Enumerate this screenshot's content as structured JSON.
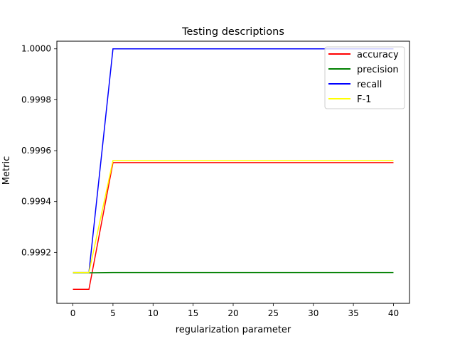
{
  "chart_data": {
    "type": "line",
    "title": "Testing descriptions",
    "xlabel": "regularization parameter",
    "ylabel": "Metric",
    "x": [
      0,
      2,
      5,
      10,
      15,
      20,
      25,
      30,
      35,
      40
    ],
    "xlim": [
      -2,
      42
    ],
    "ylim": [
      0.999,
      1.00003
    ],
    "xticks": [
      0,
      5,
      10,
      15,
      20,
      25,
      30,
      35,
      40
    ],
    "xtick_labels": [
      "0",
      "5",
      "10",
      "15",
      "20",
      "25",
      "30",
      "35",
      "40"
    ],
    "yticks": [
      0.9992,
      0.9994,
      0.9996,
      0.9998,
      1.0
    ],
    "ytick_labels": [
      "0.9992",
      "0.9994",
      "0.9996",
      "0.9998",
      "1.0000"
    ],
    "grid": false,
    "legend_position": "top-right",
    "series": [
      {
        "name": "accuracy",
        "color": "#ff0000",
        "values": [
          0.999055,
          0.999055,
          0.999553,
          0.999553,
          0.999553,
          0.999553,
          0.999553,
          0.999553,
          0.999553,
          0.999553
        ]
      },
      {
        "name": "precision",
        "color": "#008000",
        "values": [
          0.99912,
          0.99912,
          0.999121,
          0.999121,
          0.999121,
          0.999121,
          0.999121,
          0.999121,
          0.999121,
          0.999121
        ]
      },
      {
        "name": "recall",
        "color": "#0000ff",
        "values": [
          0.999121,
          0.999121,
          1.0,
          1.0,
          1.0,
          1.0,
          1.0,
          1.0,
          1.0,
          1.0
        ]
      },
      {
        "name": "F-1",
        "color": "#ffff00",
        "values": [
          0.999121,
          0.999121,
          0.999561,
          0.999561,
          0.999561,
          0.999561,
          0.999561,
          0.999561,
          0.999561,
          0.999561
        ]
      }
    ]
  }
}
